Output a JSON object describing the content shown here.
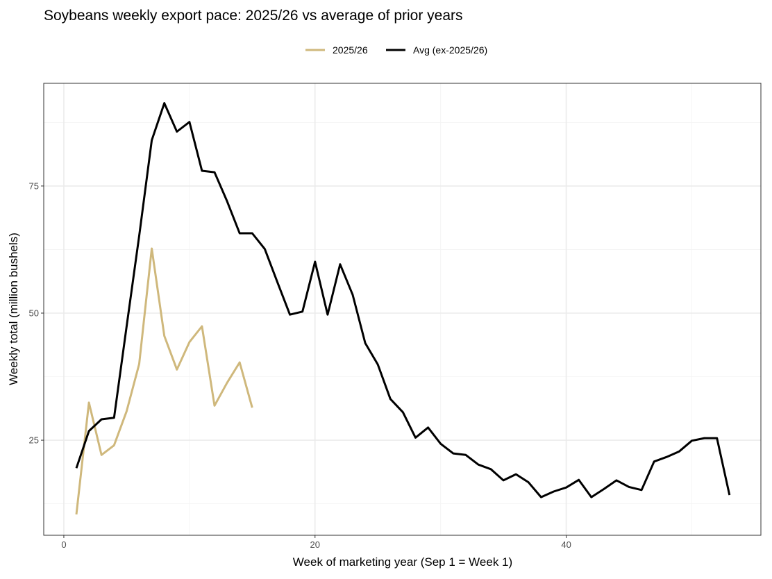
{
  "chart_data": {
    "type": "line",
    "title": "Soybeans weekly export pace: 2025/26 vs average of prior years",
    "xlabel": "Week of marketing year (Sep 1 = Week 1)",
    "ylabel": "Weekly total (million bushels)",
    "xlim": [
      -1.6,
      55.5
    ],
    "ylim": [
      6.3,
      95.2
    ],
    "xticks": [
      0,
      20,
      40
    ],
    "yticks": [
      25,
      50,
      75
    ],
    "grid": true,
    "legend": "top",
    "series": [
      {
        "name": "2025/26",
        "color": "#CFB87C",
        "x": [
          1,
          2,
          3,
          4,
          5,
          6,
          7,
          8,
          9,
          10,
          11,
          12,
          13,
          14,
          15
        ],
        "y": [
          10.4,
          32.4,
          22.1,
          24.0,
          30.7,
          40.0,
          62.7,
          45.5,
          38.9,
          44.3,
          47.4,
          31.8,
          36.3,
          40.3,
          31.4
        ]
      },
      {
        "name": "Avg (ex-2025/26)",
        "color": "#000000",
        "x": [
          1,
          2,
          3,
          4,
          5,
          6,
          7,
          8,
          9,
          10,
          11,
          12,
          13,
          14,
          15,
          16,
          17,
          18,
          19,
          20,
          21,
          22,
          23,
          24,
          25,
          26,
          27,
          28,
          29,
          30,
          31,
          32,
          33,
          34,
          35,
          36,
          37,
          38,
          39,
          40,
          41,
          42,
          43,
          44,
          45,
          46,
          47,
          48,
          49,
          50,
          51,
          52,
          53
        ],
        "y": [
          19.5,
          26.8,
          29.1,
          29.4,
          47.4,
          65.2,
          84.0,
          91.3,
          85.7,
          87.6,
          78.0,
          77.7,
          72.0,
          65.7,
          65.7,
          62.6,
          56.1,
          49.7,
          50.3,
          60.1,
          49.7,
          59.6,
          53.6,
          44.1,
          39.9,
          33.1,
          30.5,
          25.5,
          27.5,
          24.3,
          22.4,
          22.1,
          20.2,
          19.3,
          17.1,
          18.3,
          16.7,
          13.8,
          14.9,
          15.7,
          17.2,
          13.8,
          15.4,
          17.1,
          15.8,
          15.2,
          20.8,
          21.7,
          22.8,
          24.9,
          25.4,
          25.4,
          14.2
        ]
      }
    ]
  }
}
